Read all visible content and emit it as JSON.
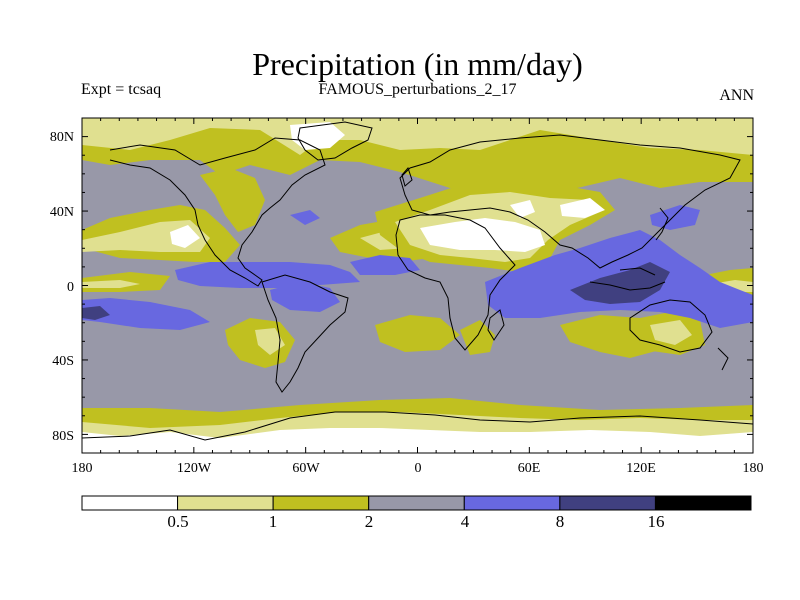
{
  "title": "Precipitation (in mm/day)",
  "subtitle_left": "Expt = tcsaq",
  "subtitle_center": "FAMOUS_perturbations_2_17",
  "subtitle_right": "ANN",
  "axes": {
    "lat_ticks": [
      "80N",
      "40N",
      "0",
      "40S",
      "80S"
    ],
    "lon_ticks": [
      "180",
      "120W",
      "60W",
      "0",
      "60E",
      "120E",
      "180"
    ]
  },
  "legend": {
    "colors": [
      "#ffffff",
      "#e0e090",
      "#c0c020",
      "#9898a8",
      "#6868e0",
      "#404080",
      "#000000"
    ],
    "labels": [
      "0.5",
      "1",
      "2",
      "4",
      "8",
      "16"
    ]
  },
  "colors": {
    "lt05": "#ffffff",
    "b05_1": "#e0e090",
    "b1_2": "#c0c020",
    "b2_4": "#9898a8",
    "b4_8": "#6868e0",
    "b8_16": "#404080",
    "gt16": "#000000"
  }
}
